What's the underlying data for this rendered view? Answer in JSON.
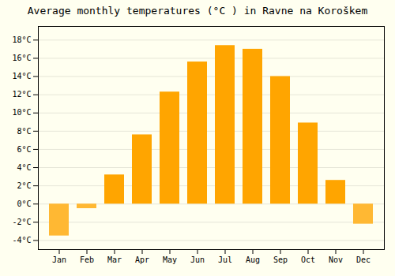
{
  "chart_data": {
    "type": "bar",
    "title": "Average monthly temperatures (°C ) in Ravne na Koroškem",
    "categories": [
      "Jan",
      "Feb",
      "Mar",
      "Apr",
      "May",
      "Jun",
      "Jul",
      "Aug",
      "Sep",
      "Oct",
      "Nov",
      "Dec"
    ],
    "values": [
      -3.5,
      -0.5,
      3.2,
      7.6,
      12.3,
      15.6,
      17.4,
      17.0,
      14.0,
      8.9,
      2.6,
      -2.2
    ],
    "colors": [
      "#FFB833",
      "#FFB833",
      "#FFA500",
      "#FFA500",
      "#FFA500",
      "#FFA500",
      "#FFA500",
      "#FFA500",
      "#FFA500",
      "#FFA500",
      "#FFA500",
      "#FFB833"
    ],
    "ylim": [
      -5,
      19.5
    ],
    "yticks": [
      {
        "value": -4,
        "label": "-4°C"
      },
      {
        "value": -2,
        "label": "-2°C"
      },
      {
        "value": 0,
        "label": "0°C"
      },
      {
        "value": 2,
        "label": "2°C"
      },
      {
        "value": 4,
        "label": "4°C"
      },
      {
        "value": 6,
        "label": "6°C"
      },
      {
        "value": 8,
        "label": "8°C"
      },
      {
        "value": 10,
        "label": "10°C"
      },
      {
        "value": 12,
        "label": "12°C"
      },
      {
        "value": 14,
        "label": "14°C"
      },
      {
        "value": 16,
        "label": "16°C"
      },
      {
        "value": 18,
        "label": "18°C"
      }
    ],
    "grid": true
  }
}
